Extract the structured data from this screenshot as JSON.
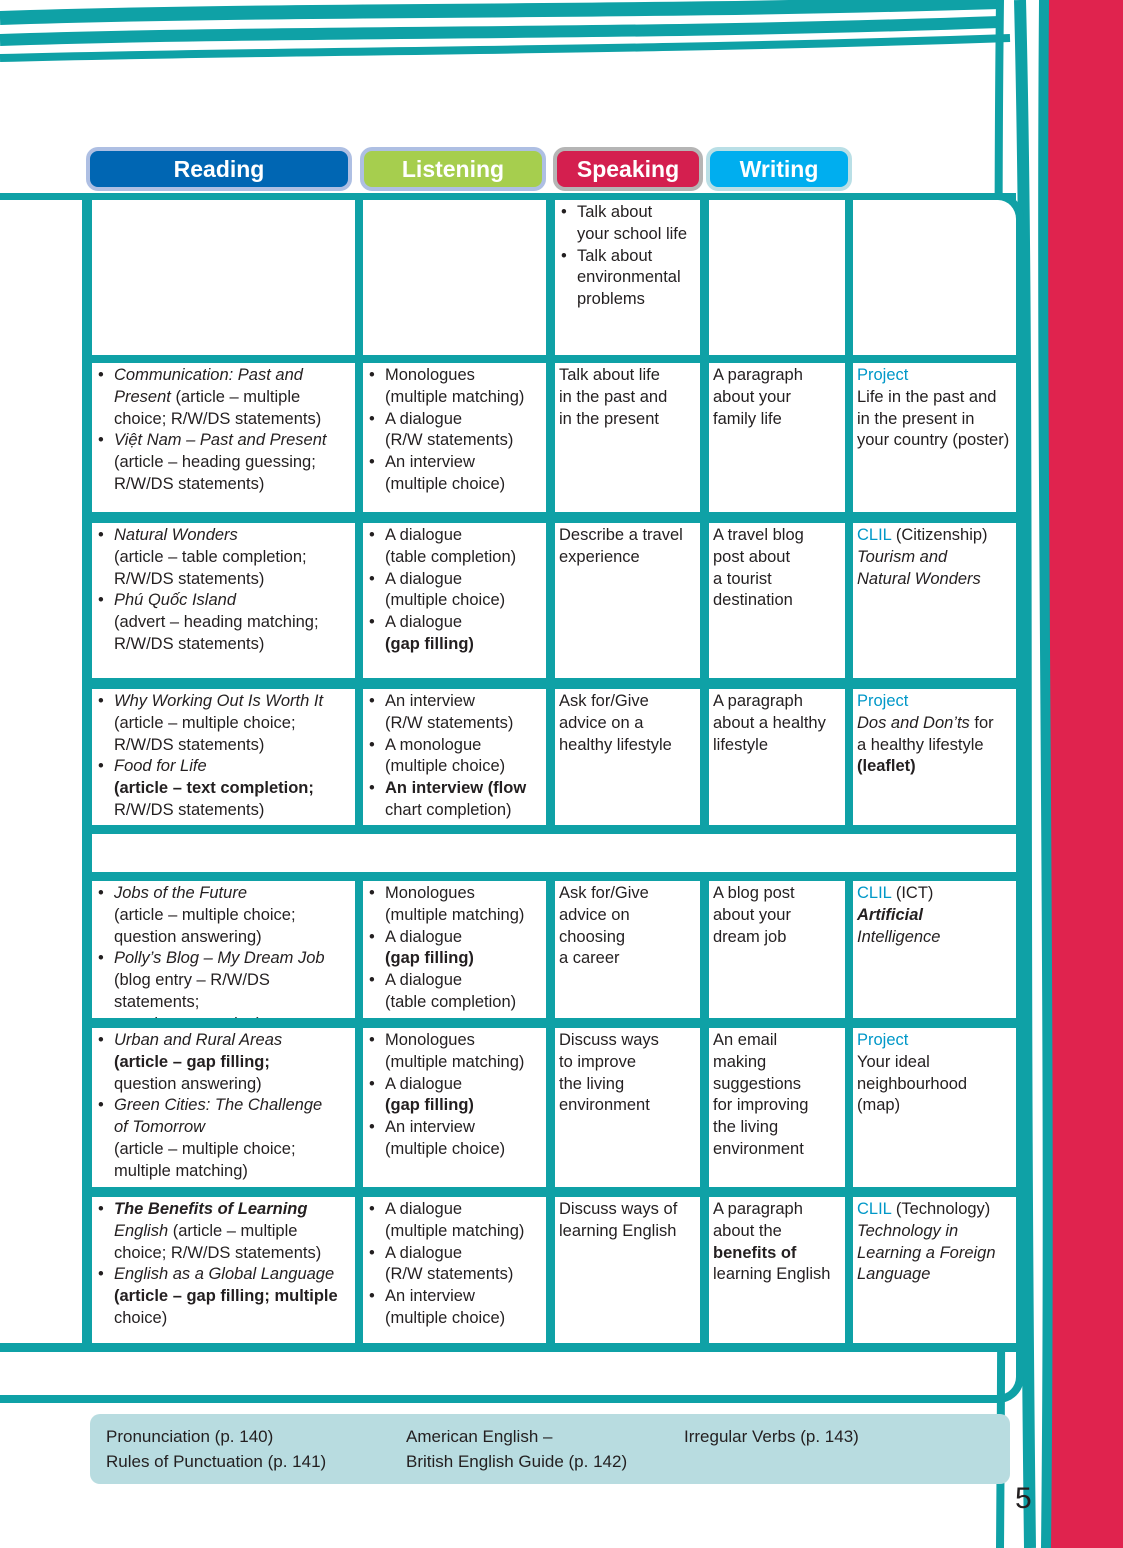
{
  "colors": {
    "teal": "#0fa1a6",
    "reading": "#0066b3",
    "listening": "#a6ce4e",
    "speaking": "#d41f4f",
    "writing": "#00aeef",
    "label": "#0098c8",
    "red_band": "#e0234e",
    "footer_bg": "#b8dce0"
  },
  "tabs": [
    {
      "label": "Reading",
      "bg": "#0066b3",
      "border": "#aebfe3"
    },
    {
      "label": "Listening",
      "bg": "#a6ce4e",
      "border": "#aebfe3"
    },
    {
      "label": "Speaking",
      "bg": "#d41f4f",
      "border": "#b5b5b5"
    },
    {
      "label": "Writing",
      "bg": "#00aeef",
      "border": "#b9dfe6"
    }
  ],
  "rows": [
    {
      "cells": [
        {
          "list": false,
          "items": []
        },
        {
          "list": false,
          "items": []
        },
        {
          "list": true,
          "items": [
            [
              [
                "Talk about\nyour school life",
                ""
              ]
            ],
            [
              [
                "Talk about\nenvironmental\nproblems",
                ""
              ]
            ]
          ]
        },
        {
          "list": false,
          "items": []
        },
        {
          "list": false,
          "items": []
        }
      ]
    },
    {
      "cells": [
        {
          "list": true,
          "items": [
            [
              [
                "Communication: Past and\nPresent",
                "i"
              ],
              [
                " (article – multiple\nchoice; R/W/DS statements)",
                ""
              ]
            ],
            [
              [
                "Việt Nam – Past and Present",
                "i"
              ],
              [
                "\n(article – heading guessing;\nR/W/DS statements)",
                ""
              ]
            ]
          ]
        },
        {
          "list": true,
          "items": [
            [
              [
                "Monologues\n(multiple matching)",
                ""
              ]
            ],
            [
              [
                "A dialogue\n(R/W statements)",
                ""
              ]
            ],
            [
              [
                "An interview\n(multiple choice)",
                ""
              ]
            ]
          ]
        },
        {
          "list": false,
          "items": [
            [
              [
                "Talk about life\nin the past and\nin the present",
                ""
              ]
            ]
          ]
        },
        {
          "list": false,
          "items": [
            [
              [
                "A paragraph\nabout your\nfamily life",
                ""
              ]
            ]
          ]
        },
        {
          "list": false,
          "items": [
            [
              [
                "Project",
                "cl"
              ],
              [
                "\nLife in the past and\nin the present in\nyour country (poster)",
                ""
              ]
            ]
          ]
        }
      ]
    },
    {
      "cells": [
        {
          "list": true,
          "items": [
            [
              [
                "Natural Wonders",
                "i"
              ],
              [
                "\n(article – table completion;\nR/W/DS statements)",
                ""
              ]
            ],
            [
              [
                "Phú Quốc Island",
                "i"
              ],
              [
                "\n(advert – heading matching;\nR/W/DS statements)",
                ""
              ]
            ]
          ]
        },
        {
          "list": true,
          "items": [
            [
              [
                "A dialogue\n(table completion)",
                ""
              ]
            ],
            [
              [
                "A dialogue\n(multiple choice)",
                ""
              ]
            ],
            [
              [
                "A dialogue\n",
                ""
              ],
              [
                "(gap filling)",
                "b"
              ]
            ]
          ]
        },
        {
          "list": false,
          "items": [
            [
              [
                "Describe a travel\nexperience",
                ""
              ]
            ]
          ]
        },
        {
          "list": false,
          "items": [
            [
              [
                "A travel blog\npost about\na tourist\ndestination",
                ""
              ]
            ]
          ]
        },
        {
          "list": false,
          "items": [
            [
              [
                "CLIL",
                "cl"
              ],
              [
                " (Citizenship)\n",
                ""
              ],
              [
                "Tourism and\nNatural Wonders",
                "i"
              ]
            ]
          ]
        }
      ]
    },
    {
      "cells": [
        {
          "list": true,
          "items": [
            [
              [
                "Why Working Out Is Worth It",
                "i"
              ],
              [
                "\n(article – multiple choice;\nR/W/DS statements)",
                ""
              ]
            ],
            [
              [
                "Food for Life",
                "i"
              ],
              [
                "\n",
                ""
              ],
              [
                "(article – text completion;",
                "b"
              ],
              [
                "\nR/W/DS statements)",
                ""
              ]
            ]
          ]
        },
        {
          "list": true,
          "items": [
            [
              [
                "An interview\n(R/W statements)",
                ""
              ]
            ],
            [
              [
                "A monologue\n(multiple choice)",
                ""
              ]
            ],
            [
              [
                "An interview (flow",
                "b"
              ],
              [
                "\nchart completion)",
                ""
              ]
            ]
          ]
        },
        {
          "list": false,
          "items": [
            [
              [
                "Ask for/Give\nadvice on a\nhealthy lifestyle",
                ""
              ]
            ]
          ]
        },
        {
          "list": false,
          "items": [
            [
              [
                "A paragraph\nabout a healthy\nlifestyle",
                ""
              ]
            ]
          ]
        },
        {
          "list": false,
          "items": [
            [
              [
                "Project",
                "cl"
              ],
              [
                "\n",
                ""
              ],
              [
                "Dos and Don’ts",
                "i"
              ],
              [
                " for\na healthy lifestyle\n",
                ""
              ],
              [
                "(leaflet)",
                "b"
              ]
            ]
          ]
        }
      ]
    },
    {
      "merged": true,
      "cells": []
    },
    {
      "cells": [
        {
          "list": true,
          "items": [
            [
              [
                "Jobs of the Future",
                "i"
              ],
              [
                "\n(article – multiple choice;\nquestion answering)",
                ""
              ]
            ],
            [
              [
                "Polly’s Blog – My Dream Job",
                "i"
              ],
              [
                "\n(blog entry – R/W/DS statements;\nquestion answering)",
                ""
              ]
            ]
          ]
        },
        {
          "list": true,
          "items": [
            [
              [
                "Monologues\n(multiple matching)",
                ""
              ]
            ],
            [
              [
                "A dialogue\n",
                ""
              ],
              [
                "(gap filling)",
                "b"
              ]
            ],
            [
              [
                "A dialogue\n(table completion)",
                ""
              ]
            ]
          ]
        },
        {
          "list": false,
          "items": [
            [
              [
                "Ask for/Give\nadvice on\nchoosing\na career",
                ""
              ]
            ]
          ]
        },
        {
          "list": false,
          "items": [
            [
              [
                "A blog post\nabout your\ndream job",
                ""
              ]
            ]
          ]
        },
        {
          "list": false,
          "items": [
            [
              [
                "CLIL",
                "cl"
              ],
              [
                " (ICT)\n",
                ""
              ],
              [
                "Artificial",
                "bi"
              ],
              [
                "\n",
                ""
              ],
              [
                "Intelligence",
                "i"
              ]
            ]
          ]
        }
      ]
    },
    {
      "cells": [
        {
          "list": true,
          "items": [
            [
              [
                "Urban and Rural Areas",
                "i"
              ],
              [
                "\n",
                ""
              ],
              [
                "(article – gap filling;",
                "b"
              ],
              [
                "\nquestion answering)",
                ""
              ]
            ],
            [
              [
                "Green Cities: The Challenge\nof Tomorrow",
                "i"
              ],
              [
                "\n(article – multiple choice;\nmultiple matching)",
                ""
              ]
            ]
          ]
        },
        {
          "list": true,
          "items": [
            [
              [
                "Monologues\n(multiple matching)",
                ""
              ]
            ],
            [
              [
                "A dialogue\n",
                ""
              ],
              [
                "(gap filling)",
                "b"
              ]
            ],
            [
              [
                "An interview\n(multiple choice)",
                ""
              ]
            ]
          ]
        },
        {
          "list": false,
          "items": [
            [
              [
                "Discuss ways\nto improve\nthe living\nenvironment",
                ""
              ]
            ]
          ]
        },
        {
          "list": false,
          "items": [
            [
              [
                "An email\nmaking\nsuggestions\nfor improving\nthe living\nenvironment",
                ""
              ]
            ]
          ]
        },
        {
          "list": false,
          "items": [
            [
              [
                "Project",
                "cl"
              ],
              [
                "\nYour ideal\nneighbourhood\n(map)",
                ""
              ]
            ]
          ]
        }
      ]
    },
    {
      "cells": [
        {
          "list": true,
          "items": [
            [
              [
                "The Benefits of Learning",
                "bi"
              ],
              [
                "\n",
                ""
              ],
              [
                "English",
                "i"
              ],
              [
                " (article – multiple\nchoice; R/W/DS statements)",
                ""
              ]
            ],
            [
              [
                "English as a Global Language",
                "i"
              ],
              [
                "\n",
                ""
              ],
              [
                "(article – gap filling; multiple",
                "b"
              ],
              [
                "\nchoice)",
                ""
              ]
            ]
          ]
        },
        {
          "list": true,
          "items": [
            [
              [
                "A dialogue\n(multiple matching)",
                ""
              ]
            ],
            [
              [
                "A dialogue\n(R/W statements)",
                ""
              ]
            ],
            [
              [
                "An interview\n(multiple choice)",
                ""
              ]
            ]
          ]
        },
        {
          "list": false,
          "items": [
            [
              [
                "Discuss ways of\nlearning English",
                ""
              ]
            ]
          ]
        },
        {
          "list": false,
          "items": [
            [
              [
                "A paragraph\nabout the\n",
                ""
              ],
              [
                "benefits of",
                "b"
              ],
              [
                "\nlearning English",
                ""
              ]
            ]
          ]
        },
        {
          "list": false,
          "items": [
            [
              [
                "CLIL",
                "cl"
              ],
              [
                " (Technology)\n",
                ""
              ],
              [
                "Technology in\nLearning a Foreign\nLanguage",
                "i"
              ]
            ]
          ]
        }
      ]
    }
  ],
  "footer": {
    "col1": "Pronunciation (p. 140)\nRules of Punctuation (p. 141)",
    "col2": "American English –\nBritish English Guide (p. 142)",
    "col3": "Irregular Verbs (p. 143)"
  },
  "page_number": "5"
}
